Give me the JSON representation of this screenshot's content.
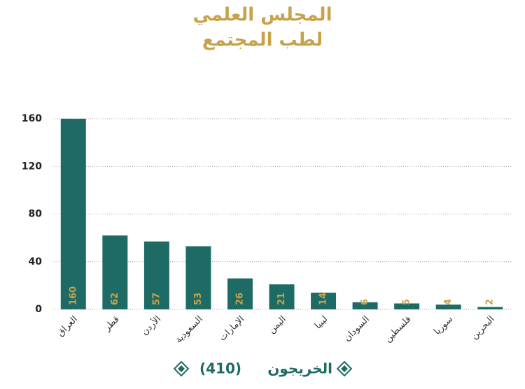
{
  "chart_data": {
    "type": "bar",
    "title": "المجلس العلمي",
    "subtitle": "لطب المجتمع",
    "categories": [
      "العراق",
      "قطر",
      "الأردن",
      "السعودية",
      "الإمارات",
      "اليمن",
      "ليبيا",
      "السودان",
      "فلسطين",
      "سوريا",
      "البحرين"
    ],
    "series": [
      {
        "name": "الخريجون",
        "color": "#1e6b66",
        "values": [
          160,
          62,
          57,
          53,
          26,
          21,
          14,
          6,
          5,
          4,
          2
        ]
      }
    ],
    "legend_total": "(410)",
    "ylim": [
      0,
      160
    ],
    "yticks": [
      0,
      40,
      80,
      120,
      160
    ],
    "grid": true,
    "legend": "bottom",
    "value_label_color": "#c8a24a"
  }
}
